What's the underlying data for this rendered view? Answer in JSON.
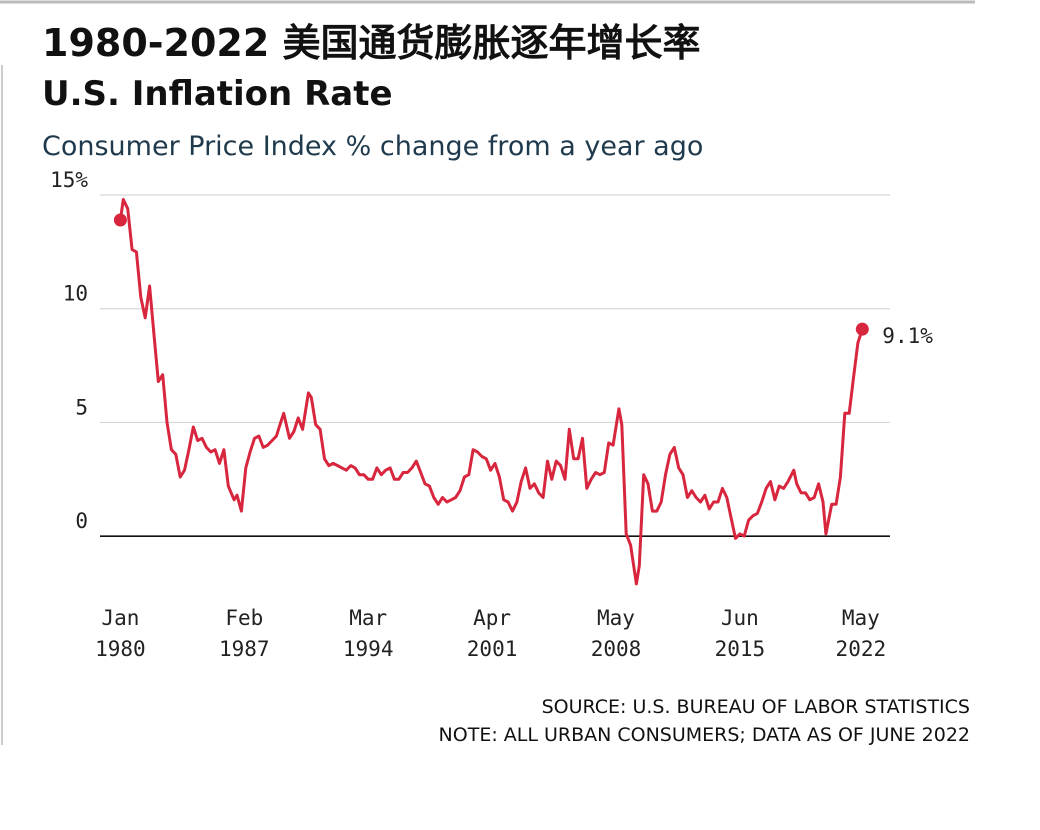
{
  "chart_data": {
    "type": "line",
    "title": "1980-2022 美国通货膨胀逐年增长率",
    "subtitle": "U.S. Inflation Rate",
    "y_label": "Consumer Price Index % change from a year ago",
    "source": "SOURCE: U.S. BUREAU OF LABOR STATISTICS",
    "note": "NOTE: ALL URBAN CONSUMERS; DATA AS OF JUNE 2022",
    "xlim": [
      "1978-11",
      "2024-01"
    ],
    "xticks": [
      {
        "value": "1980-01",
        "label": "Jan\n1980"
      },
      {
        "value": "1987-02",
        "label": "Feb\n1987"
      },
      {
        "value": "1994-03",
        "label": "Mar\n1994"
      },
      {
        "value": "2001-04",
        "label": "Apr\n2001"
      },
      {
        "value": "2008-05",
        "label": "May\n2008"
      },
      {
        "value": "2015-06",
        "label": "Jun\n2015"
      },
      {
        "value": "2022-05",
        "label": "May\n2022"
      }
    ],
    "ylim": [
      -2.5,
      15
    ],
    "yticks": [
      0,
      5,
      10,
      {
        "value": 15,
        "label": "15%"
      }
    ],
    "grid": true,
    "annotations": [
      {
        "text": "9.1%",
        "x": "2022-06",
        "y": 9.1
      }
    ],
    "x": [
      "1980-01",
      "1980-03",
      "1980-06",
      "1980-09",
      "1980-12",
      "1981-03",
      "1981-06",
      "1981-09",
      "1981-12",
      "1982-03",
      "1982-06",
      "1982-09",
      "1982-12",
      "1983-03",
      "1983-06",
      "1983-09",
      "1983-12",
      "1984-03",
      "1984-06",
      "1984-09",
      "1984-12",
      "1985-03",
      "1985-06",
      "1985-09",
      "1985-12",
      "1986-03",
      "1986-07",
      "1986-09",
      "1986-12",
      "1987-03",
      "1987-06",
      "1987-09",
      "1987-12",
      "1988-03",
      "1988-06",
      "1988-09",
      "1988-12",
      "1989-03",
      "1989-05",
      "1989-09",
      "1989-12",
      "1990-03",
      "1990-06",
      "1990-10",
      "1990-12",
      "1991-03",
      "1991-06",
      "1991-09",
      "1991-12",
      "1992-03",
      "1992-06",
      "1992-09",
      "1992-12",
      "1993-03",
      "1993-06",
      "1993-09",
      "1993-12",
      "1994-03",
      "1994-06",
      "1994-09",
      "1994-12",
      "1995-03",
      "1995-06",
      "1995-09",
      "1995-12",
      "1996-03",
      "1996-06",
      "1996-09",
      "1996-12",
      "1997-03",
      "1997-06",
      "1997-09",
      "1997-12",
      "1998-03",
      "1998-06",
      "1998-09",
      "1998-12",
      "1999-03",
      "1999-06",
      "1999-09",
      "1999-12",
      "2000-03",
      "2000-06",
      "2000-09",
      "2000-12",
      "2001-03",
      "2001-06",
      "2001-09",
      "2001-12",
      "2002-03",
      "2002-06",
      "2002-09",
      "2002-12",
      "2003-03",
      "2003-06",
      "2003-09",
      "2003-12",
      "2004-03",
      "2004-06",
      "2004-09",
      "2004-12",
      "2005-03",
      "2005-06",
      "2005-09",
      "2005-12",
      "2006-03",
      "2006-06",
      "2006-09",
      "2006-12",
      "2007-03",
      "2007-06",
      "2007-09",
      "2007-12",
      "2008-03",
      "2008-07",
      "2008-09",
      "2008-12",
      "2009-03",
      "2009-07",
      "2009-09",
      "2009-12",
      "2010-03",
      "2010-06",
      "2010-09",
      "2010-12",
      "2011-03",
      "2011-06",
      "2011-09",
      "2011-12",
      "2012-03",
      "2012-06",
      "2012-09",
      "2012-12",
      "2013-03",
      "2013-06",
      "2013-09",
      "2013-12",
      "2014-03",
      "2014-06",
      "2014-09",
      "2014-12",
      "2015-03",
      "2015-06",
      "2015-09",
      "2015-12",
      "2016-03",
      "2016-06",
      "2016-09",
      "2016-12",
      "2017-03",
      "2017-06",
      "2017-09",
      "2017-12",
      "2018-03",
      "2018-07",
      "2018-09",
      "2018-12",
      "2019-03",
      "2019-06",
      "2019-09",
      "2019-12",
      "2020-03",
      "2020-05",
      "2020-09",
      "2020-12",
      "2021-03",
      "2021-06",
      "2021-09",
      "2021-12",
      "2022-03",
      "2022-06"
    ],
    "series": [
      {
        "name": "CPI",
        "color": "#d7263d",
        "values": [
          13.9,
          14.8,
          14.4,
          12.6,
          12.5,
          10.5,
          9.6,
          11.0,
          8.9,
          6.8,
          7.1,
          5.0,
          3.8,
          3.6,
          2.6,
          2.9,
          3.8,
          4.8,
          4.2,
          4.3,
          3.9,
          3.7,
          3.8,
          3.2,
          3.8,
          2.2,
          1.6,
          1.8,
          1.1,
          3.0,
          3.7,
          4.3,
          4.4,
          3.9,
          4.0,
          4.2,
          4.4,
          5.0,
          5.4,
          4.3,
          4.6,
          5.2,
          4.7,
          6.3,
          6.1,
          4.9,
          4.7,
          3.4,
          3.1,
          3.2,
          3.1,
          3.0,
          2.9,
          3.1,
          3.0,
          2.7,
          2.7,
          2.5,
          2.5,
          3.0,
          2.7,
          2.9,
          3.0,
          2.5,
          2.5,
          2.8,
          2.8,
          3.0,
          3.3,
          2.8,
          2.3,
          2.2,
          1.7,
          1.4,
          1.7,
          1.5,
          1.6,
          1.7,
          2.0,
          2.6,
          2.7,
          3.8,
          3.7,
          3.5,
          3.4,
          2.9,
          3.2,
          2.6,
          1.6,
          1.5,
          1.1,
          1.5,
          2.4,
          3.0,
          2.1,
          2.3,
          1.9,
          1.7,
          3.3,
          2.5,
          3.3,
          3.1,
          2.5,
          4.7,
          3.4,
          3.4,
          4.3,
          2.1,
          2.5,
          2.8,
          2.7,
          2.8,
          4.1,
          4.0,
          5.6,
          4.9,
          0.1,
          -0.4,
          -2.1,
          -1.3,
          2.7,
          2.3,
          1.1,
          1.1,
          1.5,
          2.7,
          3.6,
          3.9,
          3.0,
          2.7,
          1.7,
          2.0,
          1.7,
          1.5,
          1.8,
          1.2,
          1.5,
          1.5,
          2.1,
          1.7,
          0.8,
          -0.1,
          0.1,
          0.0,
          0.7,
          0.9,
          1.0,
          1.5,
          2.1,
          2.4,
          1.6,
          2.2,
          2.1,
          2.4,
          2.9,
          2.3,
          1.9,
          1.9,
          1.6,
          1.7,
          2.3,
          1.5,
          0.1,
          1.4,
          1.4,
          2.6,
          5.4,
          5.4,
          7.0,
          8.5,
          9.1
        ]
      }
    ]
  }
}
